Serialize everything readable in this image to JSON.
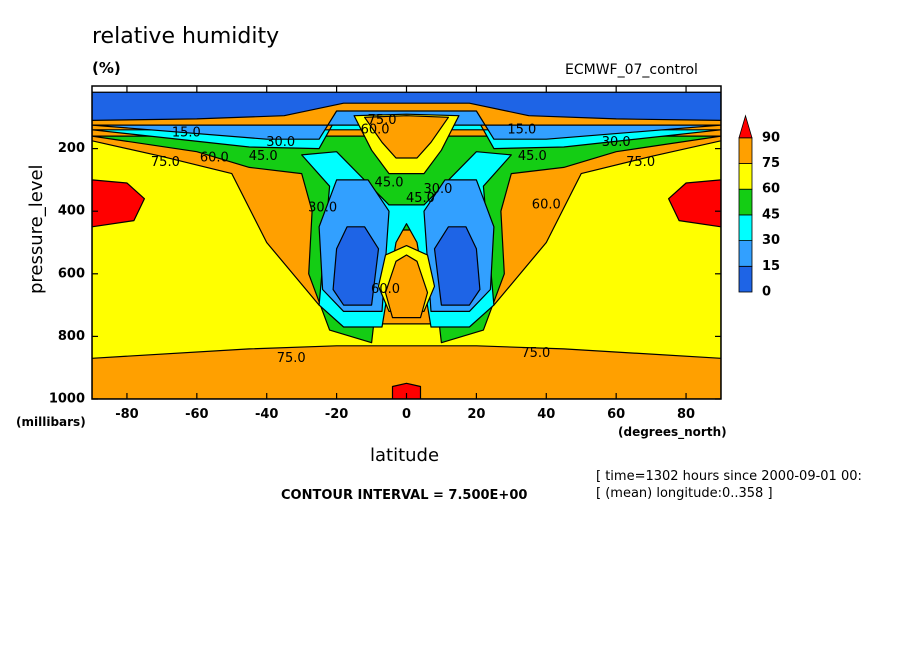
{
  "chart_data": {
    "type": "heatmap",
    "title": "relative humidity",
    "units": "(%)",
    "dataset": "ECMWF_07_control",
    "xlabel": "latitude",
    "xunits": "(degrees_north)",
    "ylabel": "pressure_level",
    "yunits": "(millibars)",
    "xlim": [
      -90,
      90
    ],
    "ylim": [
      1000,
      0
    ],
    "x_ticks": [
      -80,
      -60,
      -40,
      -20,
      0,
      20,
      40,
      60,
      80
    ],
    "y_ticks": [
      200,
      400,
      600,
      800,
      1000
    ],
    "contour_interval_text": "CONTOUR INTERVAL = 7.500E+00",
    "contour_labels": [
      "15.0",
      "30.0",
      "45.0",
      "60.0",
      "75.0"
    ],
    "colorbar": {
      "levels": [
        "0",
        "15",
        "30",
        "45",
        "60",
        "75",
        "90"
      ],
      "colors": [
        "#1e64e6",
        "#32a0ff",
        "#00ffff",
        "#14cd14",
        "#ffff00",
        "#ffa000",
        "#ff0000"
      ]
    },
    "notes": [
      "[ time=1302 hours since 2000-09-01 00:",
      "[ (mean) longitude:0..358 ]"
    ],
    "regions": [
      {
        "level": "75",
        "points": [
          [
            -90,
            20
          ],
          [
            90,
            20
          ],
          [
            90,
            1000
          ],
          [
            -90,
            1000
          ]
        ]
      },
      {
        "level": "60",
        "points": [
          [
            -90,
            175
          ],
          [
            -70,
            225
          ],
          [
            -50,
            280
          ],
          [
            -40,
            500
          ],
          [
            -25,
            700
          ],
          [
            -12,
            760
          ],
          [
            12,
            760
          ],
          [
            25,
            700
          ],
          [
            40,
            500
          ],
          [
            50,
            280
          ],
          [
            70,
            225
          ],
          [
            90,
            175
          ],
          [
            90,
            870
          ],
          [
            45,
            840
          ],
          [
            20,
            830
          ],
          [
            -20,
            830
          ],
          [
            -45,
            840
          ],
          [
            -90,
            870
          ]
        ]
      },
      {
        "level": "45",
        "points": [
          [
            -90,
            160
          ],
          [
            -60,
            210
          ],
          [
            -45,
            260
          ],
          [
            -30,
            280
          ],
          [
            -27,
            400
          ],
          [
            -28,
            600
          ],
          [
            -22,
            780
          ],
          [
            -10,
            820
          ],
          [
            -7,
            530
          ],
          [
            -3,
            460
          ],
          [
            3,
            460
          ],
          [
            7,
            530
          ],
          [
            10,
            820
          ],
          [
            22,
            780
          ],
          [
            28,
            600
          ],
          [
            27,
            400
          ],
          [
            30,
            280
          ],
          [
            45,
            260
          ],
          [
            60,
            210
          ],
          [
            90,
            160
          ]
        ]
      },
      {
        "level": "30",
        "points": [
          [
            -90,
            140
          ],
          [
            -45,
            195
          ],
          [
            -25,
            200
          ],
          [
            -20,
            100
          ],
          [
            20,
            100
          ],
          [
            25,
            200
          ],
          [
            45,
            195
          ],
          [
            90,
            140
          ]
        ]
      },
      {
        "level": "30",
        "points": [
          [
            -30,
            220
          ],
          [
            -22,
            320
          ],
          [
            -25,
            700
          ],
          [
            -18,
            770
          ],
          [
            -7,
            770
          ],
          [
            -3,
            500
          ],
          [
            0,
            440
          ],
          [
            3,
            500
          ],
          [
            7,
            770
          ],
          [
            18,
            770
          ],
          [
            25,
            700
          ],
          [
            22,
            320
          ],
          [
            30,
            220
          ],
          [
            20,
            210
          ],
          [
            5,
            380
          ],
          [
            -5,
            380
          ],
          [
            -20,
            210
          ]
        ]
      },
      {
        "level": "15",
        "points": [
          [
            -90,
            125
          ],
          [
            -40,
            170
          ],
          [
            -25,
            170
          ],
          [
            -20,
            80
          ],
          [
            20,
            80
          ],
          [
            25,
            170
          ],
          [
            40,
            170
          ],
          [
            90,
            125
          ]
        ]
      },
      {
        "level": "15",
        "points": [
          [
            -20,
            300
          ],
          [
            -25,
            450
          ],
          [
            -24,
            650
          ],
          [
            -18,
            720
          ],
          [
            -7,
            720
          ],
          [
            -5,
            400
          ],
          [
            -11,
            300
          ]
        ]
      },
      {
        "level": "15",
        "points": [
          [
            20,
            300
          ],
          [
            25,
            450
          ],
          [
            24,
            650
          ],
          [
            18,
            720
          ],
          [
            7,
            720
          ],
          [
            5,
            400
          ],
          [
            11,
            300
          ]
        ]
      },
      {
        "level": "0",
        "points": [
          [
            -90,
            20
          ],
          [
            90,
            20
          ],
          [
            90,
            110
          ],
          [
            60,
            105
          ],
          [
            35,
            95
          ],
          [
            18,
            55
          ],
          [
            -18,
            55
          ],
          [
            -35,
            95
          ],
          [
            -60,
            105
          ],
          [
            -90,
            110
          ]
        ]
      },
      {
        "level": "0",
        "points": [
          [
            -20,
            520
          ],
          [
            -21,
            650
          ],
          [
            -18,
            700
          ],
          [
            -10,
            700
          ],
          [
            -8,
            520
          ],
          [
            -12,
            450
          ],
          [
            -17,
            450
          ]
        ]
      },
      {
        "level": "0",
        "points": [
          [
            20,
            520
          ],
          [
            21,
            650
          ],
          [
            18,
            700
          ],
          [
            10,
            700
          ],
          [
            8,
            520
          ],
          [
            12,
            450
          ],
          [
            17,
            450
          ]
        ]
      },
      {
        "level": "60",
        "points": [
          [
            -15,
            95
          ],
          [
            -10,
            205
          ],
          [
            -5,
            280
          ],
          [
            5,
            280
          ],
          [
            10,
            205
          ],
          [
            15,
            95
          ],
          [
            0,
            90
          ]
        ]
      },
      {
        "level": "75",
        "points": [
          [
            -12,
            100
          ],
          [
            -7,
            180
          ],
          [
            -3,
            230
          ],
          [
            3,
            230
          ],
          [
            7,
            180
          ],
          [
            12,
            100
          ],
          [
            0,
            95
          ]
        ]
      },
      {
        "level": "60",
        "points": [
          [
            -8,
            640
          ],
          [
            -6,
            540
          ],
          [
            0,
            510
          ],
          [
            6,
            540
          ],
          [
            8,
            640
          ],
          [
            5,
            720
          ],
          [
            -5,
            720
          ]
        ]
      },
      {
        "level": "75",
        "points": [
          [
            -6,
            660
          ],
          [
            -3,
            560
          ],
          [
            0,
            540
          ],
          [
            3,
            560
          ],
          [
            6,
            660
          ],
          [
            4,
            740
          ],
          [
            -4,
            740
          ]
        ]
      },
      {
        "level": "90",
        "points": [
          [
            -90,
            300
          ],
          [
            -80,
            310
          ],
          [
            -75,
            360
          ],
          [
            -78,
            430
          ],
          [
            -90,
            450
          ]
        ]
      },
      {
        "level": "90",
        "points": [
          [
            90,
            300
          ],
          [
            80,
            310
          ],
          [
            75,
            360
          ],
          [
            78,
            430
          ],
          [
            90,
            450
          ]
        ]
      },
      {
        "level": "90",
        "points": [
          [
            -4,
            1000
          ],
          [
            -4,
            960
          ],
          [
            0,
            950
          ],
          [
            4,
            960
          ],
          [
            4,
            1000
          ]
        ]
      }
    ],
    "label_marks": [
      {
        "text": "15.0",
        "x": -63,
        "y": 150
      },
      {
        "text": "30.0",
        "x": -36,
        "y": 180
      },
      {
        "text": "60.0",
        "x": -55,
        "y": 230
      },
      {
        "text": "45.0",
        "x": -41,
        "y": 225
      },
      {
        "text": "75.0",
        "x": -69,
        "y": 245
      },
      {
        "text": "15.0",
        "x": 33,
        "y": 140
      },
      {
        "text": "30.0",
        "x": 60,
        "y": 180
      },
      {
        "text": "45.0",
        "x": 36,
        "y": 225
      },
      {
        "text": "75.0",
        "x": 67,
        "y": 245
      },
      {
        "text": "60.0",
        "x": -9,
        "y": 140
      },
      {
        "text": "75.0",
        "x": -7,
        "y": 110
      },
      {
        "text": "45.0",
        "x": -5,
        "y": 310
      },
      {
        "text": "45.0",
        "x": 4,
        "y": 360
      },
      {
        "text": "30.0",
        "x": 9,
        "y": 330
      },
      {
        "text": "30.0",
        "x": -24,
        "y": 390
      },
      {
        "text": "60.0",
        "x": 40,
        "y": 380
      },
      {
        "text": "60.0",
        "x": -6,
        "y": 650
      },
      {
        "text": "75.0",
        "x": -33,
        "y": 870
      },
      {
        "text": "75.0",
        "x": 37,
        "y": 855
      }
    ]
  }
}
